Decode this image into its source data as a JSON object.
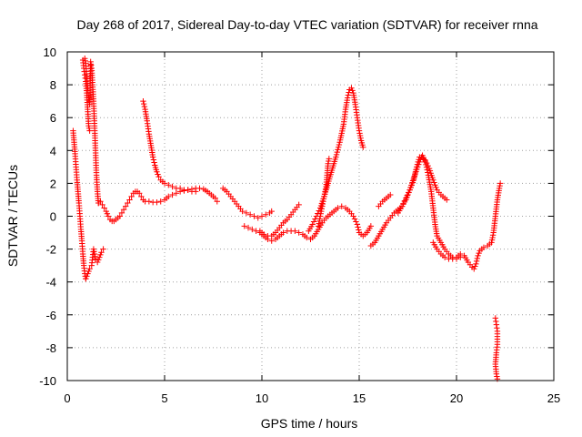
{
  "chart_data": {
    "type": "scatter",
    "title": "Day 268 of 2017, Sidereal Day-to-day VTEC variation (SDTVAR) for receiver rnna",
    "xlabel": "GPS time / hours",
    "ylabel": "SDTVAR / TECUs",
    "xlim": [
      0,
      25
    ],
    "ylim": [
      -10,
      10
    ],
    "xticks": [
      "0",
      "5",
      "10",
      "15",
      "20",
      "25"
    ],
    "yticks": [
      "-10",
      "-8",
      "-6",
      "-4",
      "-2",
      "0",
      "2",
      "4",
      "6",
      "8",
      "10"
    ],
    "grid": true,
    "marker": "+",
    "color": "#ff0000",
    "series": [
      {
        "name": "s1",
        "points": [
          [
            0.3,
            5.2
          ],
          [
            0.35,
            4.5
          ],
          [
            0.4,
            3.8
          ],
          [
            0.45,
            3.0
          ],
          [
            0.5,
            2.2
          ],
          [
            0.55,
            1.5
          ],
          [
            0.6,
            0.8
          ],
          [
            0.65,
            0.0
          ],
          [
            0.7,
            -0.8
          ],
          [
            0.75,
            -1.5
          ],
          [
            0.8,
            -2.3
          ],
          [
            0.85,
            -3.0
          ],
          [
            0.9,
            -3.5
          ],
          [
            0.95,
            -3.8
          ]
        ]
      },
      {
        "name": "s2",
        "points": [
          [
            0.8,
            9.5
          ],
          [
            0.85,
            9.0
          ],
          [
            0.9,
            8.6
          ],
          [
            0.95,
            8.2
          ],
          [
            1.0,
            7.5
          ],
          [
            1.05,
            6.5
          ],
          [
            1.1,
            5.5
          ],
          [
            1.15,
            5.2
          ]
        ]
      },
      {
        "name": "s3",
        "points": [
          [
            0.9,
            9.6
          ],
          [
            0.95,
            9.3
          ],
          [
            1.0,
            8.5
          ],
          [
            1.05,
            7.8
          ],
          [
            1.1,
            7.2
          ],
          [
            1.15,
            6.8
          ],
          [
            1.2,
            9.4
          ],
          [
            1.25,
            9.0
          ],
          [
            1.3,
            8.0
          ],
          [
            1.35,
            7.0
          ],
          [
            1.4,
            5.5
          ],
          [
            1.45,
            4.0
          ],
          [
            1.5,
            2.5
          ],
          [
            1.55,
            1.5
          ],
          [
            1.6,
            0.8
          ]
        ]
      },
      {
        "name": "s4",
        "points": [
          [
            0.95,
            -3.8
          ],
          [
            1.05,
            -3.5
          ],
          [
            1.15,
            -3.2
          ],
          [
            1.25,
            -3.0
          ],
          [
            1.3,
            -2.5
          ],
          [
            1.35,
            -2.0
          ],
          [
            1.45,
            -2.6
          ],
          [
            1.55,
            -2.8
          ],
          [
            1.65,
            -2.5
          ],
          [
            1.75,
            -2.2
          ],
          [
            1.85,
            -2.0
          ]
        ]
      },
      {
        "name": "s5",
        "points": [
          [
            1.6,
            0.8
          ],
          [
            1.7,
            0.9
          ],
          [
            1.8,
            0.7
          ],
          [
            1.9,
            0.5
          ],
          [
            2.0,
            0.3
          ],
          [
            2.1,
            0.0
          ],
          [
            2.2,
            -0.2
          ],
          [
            2.3,
            -0.3
          ],
          [
            2.4,
            -0.3
          ],
          [
            2.5,
            -0.2
          ],
          [
            2.6,
            -0.1
          ],
          [
            2.7,
            0.0
          ],
          [
            2.8,
            0.2
          ],
          [
            2.9,
            0.4
          ],
          [
            3.0,
            0.6
          ],
          [
            3.1,
            0.8
          ],
          [
            3.2,
            1.0
          ],
          [
            3.3,
            1.2
          ],
          [
            3.4,
            1.4
          ],
          [
            3.5,
            1.5
          ],
          [
            3.6,
            1.5
          ],
          [
            3.7,
            1.4
          ],
          [
            3.8,
            1.2
          ],
          [
            3.9,
            1.0
          ],
          [
            4.0,
            0.9
          ],
          [
            4.2,
            0.9
          ],
          [
            4.4,
            0.85
          ],
          [
            4.6,
            0.85
          ],
          [
            4.8,
            0.9
          ],
          [
            5.0,
            1.0
          ],
          [
            5.2,
            1.2
          ],
          [
            5.4,
            1.3
          ],
          [
            5.6,
            1.4
          ],
          [
            5.8,
            1.5
          ],
          [
            6.0,
            1.55
          ],
          [
            6.2,
            1.6
          ],
          [
            6.4,
            1.65
          ],
          [
            6.6,
            1.7
          ],
          [
            6.8,
            1.7
          ],
          [
            7.0,
            1.65
          ],
          [
            7.2,
            1.5
          ],
          [
            7.4,
            1.3
          ],
          [
            7.6,
            1.1
          ],
          [
            7.7,
            0.9
          ]
        ]
      },
      {
        "name": "s6",
        "points": [
          [
            3.9,
            7.0
          ],
          [
            4.0,
            6.5
          ],
          [
            4.1,
            5.8
          ],
          [
            4.2,
            5.0
          ],
          [
            4.3,
            4.3
          ],
          [
            4.4,
            3.6
          ],
          [
            4.5,
            3.1
          ],
          [
            4.6,
            2.7
          ],
          [
            4.7,
            2.4
          ],
          [
            4.8,
            2.2
          ],
          [
            5.0,
            2.0
          ],
          [
            5.2,
            1.9
          ],
          [
            5.4,
            1.8
          ],
          [
            5.6,
            1.7
          ],
          [
            5.8,
            1.7
          ],
          [
            6.0,
            1.6
          ],
          [
            6.2,
            1.6
          ],
          [
            6.4,
            1.5
          ],
          [
            6.6,
            1.5
          ]
        ]
      },
      {
        "name": "s7",
        "points": [
          [
            8.0,
            1.7
          ],
          [
            8.2,
            1.5
          ],
          [
            8.4,
            1.2
          ],
          [
            8.6,
            0.9
          ],
          [
            8.8,
            0.6
          ],
          [
            9.0,
            0.3
          ],
          [
            9.2,
            0.2
          ],
          [
            9.4,
            0.1
          ],
          [
            9.6,
            0.0
          ],
          [
            9.8,
            -0.1
          ],
          [
            10.0,
            0.0
          ],
          [
            10.2,
            0.1
          ],
          [
            10.4,
            0.2
          ],
          [
            10.5,
            0.3
          ]
        ]
      },
      {
        "name": "s8",
        "points": [
          [
            9.1,
            -0.6
          ],
          [
            9.3,
            -0.7
          ],
          [
            9.5,
            -0.8
          ],
          [
            9.7,
            -0.9
          ],
          [
            9.9,
            -1.0
          ],
          [
            10.1,
            -1.2
          ],
          [
            10.3,
            -1.4
          ],
          [
            10.5,
            -1.5
          ],
          [
            10.7,
            -1.4
          ],
          [
            10.9,
            -1.2
          ],
          [
            11.1,
            -1.0
          ],
          [
            11.3,
            -0.9
          ],
          [
            11.5,
            -0.9
          ],
          [
            11.7,
            -0.9
          ],
          [
            11.9,
            -1.0
          ],
          [
            12.1,
            -1.1
          ],
          [
            12.3,
            -1.3
          ],
          [
            12.5,
            -1.4
          ],
          [
            12.7,
            -1.2
          ],
          [
            12.9,
            -0.8
          ],
          [
            13.1,
            -0.4
          ],
          [
            13.3,
            -0.1
          ],
          [
            13.5,
            0.1
          ],
          [
            13.7,
            0.3
          ],
          [
            13.9,
            0.5
          ],
          [
            14.1,
            0.6
          ],
          [
            14.3,
            0.5
          ],
          [
            14.5,
            0.3
          ],
          [
            14.7,
            0.0
          ],
          [
            14.9,
            -0.5
          ],
          [
            15.0,
            -1.0
          ],
          [
            15.2,
            -1.2
          ],
          [
            15.4,
            -1.0
          ],
          [
            15.6,
            -0.6
          ]
        ]
      },
      {
        "name": "s9",
        "points": [
          [
            9.9,
            -0.9
          ],
          [
            10.1,
            -1.1
          ],
          [
            10.3,
            -1.2
          ],
          [
            10.5,
            -1.2
          ],
          [
            10.7,
            -1.0
          ],
          [
            10.9,
            -0.7
          ],
          [
            11.1,
            -0.4
          ],
          [
            11.3,
            -0.2
          ],
          [
            11.5,
            0.1
          ],
          [
            11.7,
            0.4
          ],
          [
            11.9,
            0.7
          ]
        ]
      },
      {
        "name": "s10",
        "points": [
          [
            12.4,
            -0.9
          ],
          [
            12.6,
            -0.5
          ],
          [
            12.8,
            0.0
          ],
          [
            13.0,
            0.5
          ],
          [
            13.2,
            1.2
          ],
          [
            13.4,
            2.0
          ],
          [
            13.6,
            2.8
          ],
          [
            13.8,
            3.6
          ],
          [
            14.0,
            4.5
          ],
          [
            14.2,
            5.6
          ],
          [
            14.3,
            6.5
          ],
          [
            14.4,
            7.2
          ],
          [
            14.5,
            7.7
          ],
          [
            14.6,
            7.8
          ],
          [
            14.7,
            7.5
          ],
          [
            14.8,
            6.8
          ],
          [
            14.9,
            6.0
          ],
          [
            15.0,
            5.2
          ],
          [
            15.1,
            4.6
          ],
          [
            15.2,
            4.2
          ]
        ]
      },
      {
        "name": "s11",
        "points": [
          [
            12.9,
            -0.6
          ],
          [
            13.0,
            0.0
          ],
          [
            13.1,
            0.6
          ],
          [
            13.2,
            1.2
          ],
          [
            13.3,
            1.8
          ],
          [
            13.35,
            2.5
          ],
          [
            13.4,
            3.2
          ],
          [
            13.45,
            3.5
          ]
        ]
      },
      {
        "name": "s12",
        "points": [
          [
            15.6,
            -1.8
          ],
          [
            15.8,
            -1.6
          ],
          [
            16.0,
            -1.2
          ],
          [
            16.2,
            -0.8
          ],
          [
            16.4,
            -0.4
          ],
          [
            16.6,
            -0.1
          ],
          [
            16.8,
            0.2
          ],
          [
            17.0,
            0.4
          ],
          [
            17.2,
            0.6
          ],
          [
            17.4,
            1.0
          ],
          [
            17.6,
            1.6
          ],
          [
            17.8,
            2.3
          ],
          [
            18.0,
            3.0
          ],
          [
            18.2,
            3.6
          ],
          [
            18.4,
            3.4
          ],
          [
            18.6,
            2.9
          ],
          [
            18.8,
            2.2
          ],
          [
            19.0,
            1.6
          ],
          [
            19.2,
            1.3
          ],
          [
            19.4,
            1.1
          ],
          [
            19.5,
            1.0
          ]
        ]
      },
      {
        "name": "s13",
        "points": [
          [
            16.0,
            0.6
          ],
          [
            16.2,
            0.9
          ],
          [
            16.4,
            1.1
          ],
          [
            16.6,
            1.3
          ]
        ]
      },
      {
        "name": "s14",
        "points": [
          [
            17.0,
            0.2
          ],
          [
            17.2,
            0.6
          ],
          [
            17.4,
            1.1
          ],
          [
            17.6,
            1.6
          ],
          [
            17.8,
            2.2
          ],
          [
            17.95,
            3.0
          ],
          [
            18.1,
            3.6
          ],
          [
            18.25,
            3.7
          ],
          [
            18.4,
            3.3
          ],
          [
            18.55,
            2.5
          ],
          [
            18.7,
            1.5
          ],
          [
            18.8,
            0.5
          ],
          [
            18.9,
            -0.5
          ],
          [
            19.0,
            -1.2
          ],
          [
            19.2,
            -1.6
          ],
          [
            19.4,
            -2.0
          ],
          [
            19.6,
            -2.3
          ],
          [
            19.8,
            -2.5
          ],
          [
            20.0,
            -2.6
          ],
          [
            20.2,
            -2.5
          ],
          [
            20.4,
            -2.4
          ],
          [
            20.6,
            -2.8
          ],
          [
            20.8,
            -3.1
          ],
          [
            20.9,
            -3.2
          ],
          [
            21.0,
            -2.9
          ],
          [
            21.1,
            -2.4
          ],
          [
            21.2,
            -2.1
          ],
          [
            21.4,
            -1.9
          ],
          [
            21.6,
            -1.8
          ],
          [
            21.8,
            -1.6
          ],
          [
            21.9,
            -1.0
          ],
          [
            22.0,
            0.0
          ],
          [
            22.1,
            1.0
          ],
          [
            22.2,
            1.7
          ],
          [
            22.25,
            2.0
          ]
        ]
      },
      {
        "name": "s15",
        "points": [
          [
            18.8,
            -1.6
          ],
          [
            19.0,
            -2.0
          ],
          [
            19.2,
            -2.3
          ],
          [
            19.4,
            -2.5
          ],
          [
            19.6,
            -2.6
          ],
          [
            19.8,
            -2.6
          ],
          [
            20.0,
            -2.5
          ],
          [
            20.2,
            -2.3
          ]
        ]
      },
      {
        "name": "s16",
        "points": [
          [
            22.0,
            -6.2
          ],
          [
            22.05,
            -6.6
          ],
          [
            22.1,
            -7.0
          ],
          [
            22.1,
            -7.8
          ],
          [
            22.05,
            -8.3
          ],
          [
            22.0,
            -9.0
          ],
          [
            22.05,
            -9.6
          ],
          [
            22.1,
            -9.9
          ]
        ]
      }
    ]
  }
}
